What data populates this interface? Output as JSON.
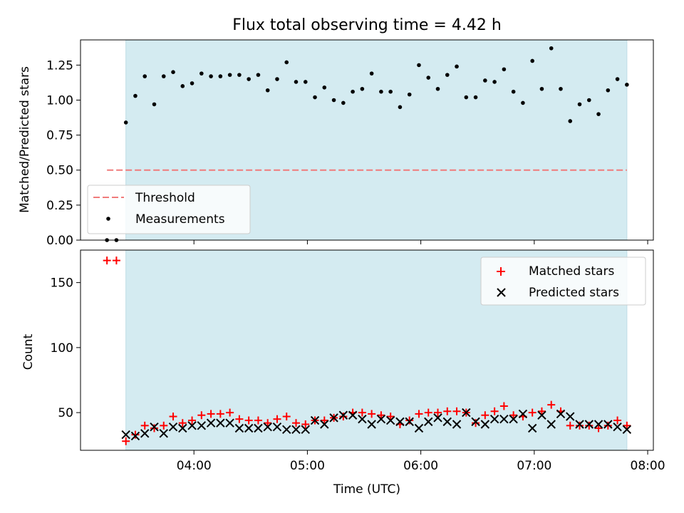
{
  "figure": {
    "title": "Flux total observing time = 4.42 h",
    "xlabel": "Time (UTC)"
  },
  "chart_data": [
    {
      "type": "scatter",
      "panel": "top",
      "ylabel": "Matched/Predicted stars",
      "xlim": [
        "03:00",
        "08:03"
      ],
      "ylim": [
        0,
        1.43
      ],
      "x_ticks": [
        "04:00",
        "05:00",
        "06:00",
        "07:00",
        "08:00"
      ],
      "y_ticks": [
        "0.00",
        "0.25",
        "0.50",
        "0.75",
        "1.00",
        "1.25"
      ],
      "shaded_span": {
        "start": "03:24",
        "end": "07:49",
        "color": "#d4ebf1"
      },
      "threshold": {
        "name": "Threshold",
        "value": 0.5,
        "start": "03:14",
        "end": "07:49",
        "color": "#f07b7b",
        "style": "dashed"
      },
      "legend": {
        "location": "lower left",
        "entries": [
          "Threshold",
          "Measurements"
        ]
      },
      "series": [
        {
          "name": "Measurements",
          "color": "#000000",
          "marker": "dot",
          "x": [
            "03:14",
            "03:19",
            "03:24",
            "03:29",
            "03:34",
            "03:39",
            "03:44",
            "03:49",
            "03:54",
            "03:59",
            "04:04",
            "04:09",
            "04:14",
            "04:19",
            "04:24",
            "04:29",
            "04:34",
            "04:39",
            "04:44",
            "04:49",
            "04:54",
            "04:59",
            "05:04",
            "05:09",
            "05:14",
            "05:19",
            "05:24",
            "05:29",
            "05:34",
            "05:39",
            "05:44",
            "05:49",
            "05:54",
            "05:59",
            "06:04",
            "06:09",
            "06:14",
            "06:19",
            "06:24",
            "06:29",
            "06:34",
            "06:39",
            "06:44",
            "06:49",
            "06:54",
            "06:59",
            "07:04",
            "07:09",
            "07:14",
            "07:19",
            "07:24",
            "07:29",
            "07:34",
            "07:39",
            "07:44",
            "07:49"
          ],
          "y": [
            0.0,
            0.0,
            0.84,
            1.03,
            1.17,
            0.97,
            1.17,
            1.2,
            1.1,
            1.12,
            1.19,
            1.17,
            1.17,
            1.18,
            1.18,
            1.15,
            1.18,
            1.07,
            1.15,
            1.27,
            1.13,
            1.13,
            1.02,
            1.09,
            1.0,
            0.98,
            1.06,
            1.08,
            1.19,
            1.06,
            1.06,
            0.95,
            1.04,
            1.25,
            1.16,
            1.08,
            1.18,
            1.24,
            1.02,
            1.02,
            1.14,
            1.13,
            1.22,
            1.06,
            0.98,
            1.28,
            1.08,
            1.37,
            1.08,
            0.85,
            0.97,
            1.0,
            0.9,
            1.07,
            1.15,
            1.11
          ]
        }
      ]
    },
    {
      "type": "scatter",
      "panel": "bottom",
      "ylabel": "Count",
      "xlim": [
        "03:00",
        "08:03"
      ],
      "ylim": [
        21,
        175
      ],
      "x_ticks": [
        "04:00",
        "05:00",
        "06:00",
        "07:00",
        "08:00"
      ],
      "y_ticks": [
        "50",
        "100",
        "150"
      ],
      "shaded_span": {
        "start": "03:24",
        "end": "07:49",
        "color": "#d4ebf1"
      },
      "legend": {
        "location": "upper right",
        "entries": [
          "Matched stars",
          "Predicted stars"
        ]
      },
      "series": [
        {
          "name": "Matched stars",
          "color": "#ff0000",
          "marker": "plus",
          "x": [
            "03:14",
            "03:19",
            "03:24",
            "03:29",
            "03:34",
            "03:39",
            "03:44",
            "03:49",
            "03:54",
            "03:59",
            "04:04",
            "04:09",
            "04:14",
            "04:19",
            "04:24",
            "04:29",
            "04:34",
            "04:39",
            "04:44",
            "04:49",
            "04:54",
            "04:59",
            "05:04",
            "05:09",
            "05:14",
            "05:19",
            "05:24",
            "05:29",
            "05:34",
            "05:39",
            "05:44",
            "05:49",
            "05:54",
            "05:59",
            "06:04",
            "06:09",
            "06:14",
            "06:19",
            "06:24",
            "06:29",
            "06:34",
            "06:39",
            "06:44",
            "06:49",
            "06:54",
            "06:59",
            "07:04",
            "07:09",
            "07:14",
            "07:19",
            "07:24",
            "07:29",
            "07:34",
            "07:39",
            "07:44",
            "07:49"
          ],
          "y": [
            167,
            167,
            28,
            33,
            40,
            38,
            40,
            47,
            42,
            44,
            48,
            49,
            49,
            50,
            45,
            44,
            44,
            42,
            45,
            47,
            42,
            41,
            44,
            44,
            46,
            47,
            50,
            50,
            49,
            48,
            47,
            41,
            44,
            49,
            50,
            50,
            51,
            51,
            50,
            42,
            48,
            51,
            55,
            48,
            47,
            50,
            51,
            56,
            51,
            40,
            40,
            40,
            38,
            40,
            44,
            40
          ]
        },
        {
          "name": "Predicted stars",
          "color": "#000000",
          "marker": "x",
          "x": [
            "03:24",
            "03:29",
            "03:34",
            "03:39",
            "03:44",
            "03:49",
            "03:54",
            "03:59",
            "04:04",
            "04:09",
            "04:14",
            "04:19",
            "04:24",
            "04:29",
            "04:34",
            "04:39",
            "04:44",
            "04:49",
            "04:54",
            "04:59",
            "05:04",
            "05:09",
            "05:14",
            "05:19",
            "05:24",
            "05:29",
            "05:34",
            "05:39",
            "05:44",
            "05:49",
            "05:54",
            "05:59",
            "06:04",
            "06:09",
            "06:14",
            "06:19",
            "06:24",
            "06:29",
            "06:34",
            "06:39",
            "06:44",
            "06:49",
            "06:54",
            "06:59",
            "07:04",
            "07:09",
            "07:14",
            "07:19",
            "07:24",
            "07:29",
            "07:34",
            "07:39",
            "07:44",
            "07:49"
          ],
          "y": [
            33,
            32,
            34,
            39,
            34,
            39,
            38,
            40,
            40,
            42,
            42,
            42,
            38,
            38,
            38,
            39,
            39,
            37,
            37,
            37,
            44,
            41,
            46,
            48,
            48,
            45,
            41,
            45,
            44,
            43,
            43,
            38,
            43,
            46,
            43,
            41,
            50,
            43,
            41,
            45,
            45,
            45,
            49,
            38,
            48,
            41,
            49,
            47,
            41,
            41,
            41,
            41,
            39,
            37
          ]
        }
      ]
    }
  ]
}
